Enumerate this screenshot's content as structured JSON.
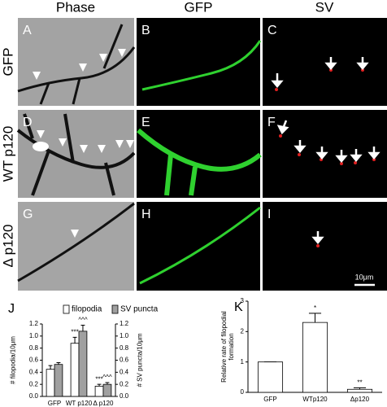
{
  "columns": [
    "Phase",
    "GFP",
    "SV"
  ],
  "rows": [
    "GFP",
    "WT p120",
    "Δ p120"
  ],
  "panels": [
    "A",
    "B",
    "C",
    "D",
    "E",
    "F",
    "G",
    "H",
    "I"
  ],
  "scale_bar": "10μm",
  "chart_data": [
    {
      "type": "bar",
      "panel": "J",
      "ylabel": "# filopodia/10μm",
      "y2label": "# SV puncta/10μm",
      "categories": [
        "GFP",
        "WT p120",
        "Δ p120"
      ],
      "series": [
        {
          "name": "filopodia",
          "color": "#ffffff",
          "values": [
            0.45,
            0.88,
            0.17
          ],
          "errors": [
            0.06,
            0.1,
            0.03
          ],
          "labels": [
            null,
            "***",
            "***"
          ]
        },
        {
          "name": "SV puncta",
          "color": "#a0a0a0",
          "axis": "y2",
          "values": [
            0.53,
            1.08,
            0.2
          ],
          "errors": [
            0.03,
            0.1,
            0.03
          ],
          "labels": [
            null,
            "^^^",
            "^^^"
          ]
        }
      ],
      "ylim": [
        0,
        1.2
      ],
      "yticks": [
        {
          "value": 0,
          "label": "0.0"
        },
        0.2,
        0.4,
        0.6,
        0.8,
        {
          "value": 1,
          "label": "1.0"
        },
        1.2
      ],
      "y2lim": [
        0,
        1.2
      ],
      "y2ticks": [
        {
          "value": 0,
          "label": "0.0"
        },
        0.2,
        0.4,
        0.6,
        0.8,
        {
          "value": 1,
          "label": "1.0"
        },
        1.2
      ]
    },
    {
      "type": "bar",
      "panel": "K",
      "ylabel": "Relative rate of filopodial formation",
      "categories": [
        "GFP",
        "WTp120",
        "Δp120"
      ],
      "values": [
        1,
        2.3,
        0.1
      ],
      "errors": [
        0,
        0.3,
        0.05
      ],
      "labels": [
        null,
        "*",
        "**"
      ],
      "color": "#ffffff",
      "ylim": [
        0,
        3
      ],
      "yticks": [
        0,
        1,
        2,
        3
      ]
    }
  ]
}
